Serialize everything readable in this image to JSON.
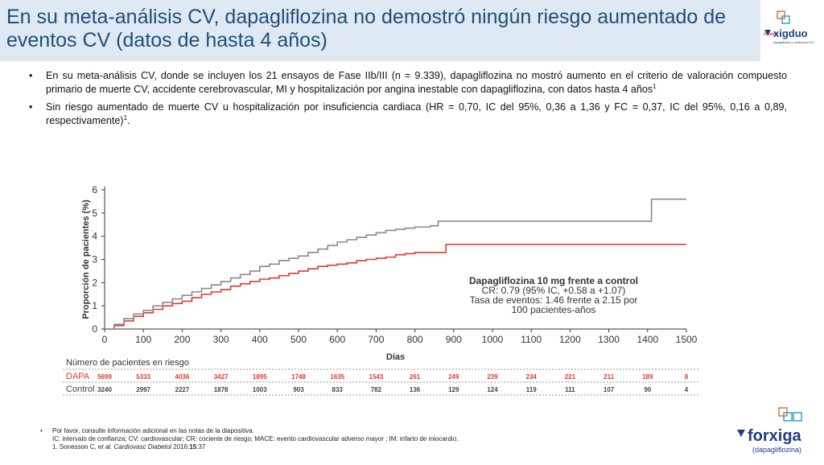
{
  "header": {
    "title": "En su meta-análisis CV, dapagliflozina no demostró ningún riesgo aumentado de eventos CV (datos de hasta 4 años)"
  },
  "brand_top": {
    "name": "xigduo",
    "tag": "nuevo",
    "sub": "dapagliflozina y metformina HCl",
    "color": "#1f3c88"
  },
  "bullets": [
    {
      "text": "En su meta-análisis CV, donde se incluyen los 21 ensayos de Fase IIb/III (n = 9.339), dapagliflozina no mostró aumento en el criterio de valoración compuesto primario de muerte CV, accidente cerebrovascular, MI y hospitalización por angina inestable con dapagliflozina, con datos hasta 4 años",
      "sup": "1"
    },
    {
      "text": "Sin riesgo aumentado de muerte CV u hospitalización por insuficiencia cardiaca (HR = 0,70, IC del 95%, 0,36 a 1,36 y FC = 0,37, IC del 95%, 0,16 a 0,89, respectivamente)",
      "sup": "1",
      "tail": "."
    }
  ],
  "chart_data": {
    "type": "line",
    "ylabel": "Proporción de pacientes (%)",
    "xlabel": "Días",
    "xlim": [
      0,
      1500
    ],
    "ylim": [
      0,
      6
    ],
    "x_ticks": [
      "0",
      "100",
      "200",
      "300",
      "400",
      "500",
      "600",
      "700",
      "800",
      "900",
      "1000",
      "1100",
      "1200",
      "1300",
      "1400",
      "1500"
    ],
    "y_ticks": [
      "0",
      "1",
      "2",
      "3",
      "4",
      "5",
      "6"
    ],
    "annotation": {
      "title": "Dapagliflozina 10 mg frente a control",
      "line1": "CR: 0.79 (95% IC, +0.58 a +1.07)",
      "line2": "Tasa de eventos: 1.46 frente a 2.15 por",
      "line3": "100 pacientes-años"
    },
    "series": [
      {
        "name": "DAPA",
        "color": "#e03a2f",
        "x": [
          0,
          25,
          50,
          75,
          100,
          125,
          150,
          175,
          200,
          225,
          250,
          275,
          300,
          325,
          350,
          375,
          400,
          425,
          450,
          475,
          500,
          525,
          550,
          575,
          600,
          625,
          650,
          675,
          700,
          725,
          750,
          775,
          800,
          850,
          880,
          1000,
          1200,
          1400,
          1500
        ],
        "y": [
          0,
          0.15,
          0.35,
          0.55,
          0.7,
          0.85,
          1.0,
          1.1,
          1.2,
          1.35,
          1.5,
          1.6,
          1.7,
          1.85,
          1.95,
          2.05,
          2.15,
          2.2,
          2.3,
          2.4,
          2.5,
          2.6,
          2.7,
          2.75,
          2.8,
          2.85,
          2.95,
          3.0,
          3.05,
          3.1,
          3.2,
          3.25,
          3.3,
          3.3,
          3.65,
          3.65,
          3.65,
          3.65,
          3.65
        ]
      },
      {
        "name": "Control",
        "color": "#8a8a8a",
        "x": [
          0,
          25,
          50,
          75,
          100,
          125,
          150,
          175,
          200,
          225,
          250,
          275,
          300,
          325,
          350,
          375,
          400,
          425,
          450,
          475,
          500,
          525,
          550,
          575,
          600,
          625,
          650,
          675,
          700,
          725,
          750,
          775,
          800,
          840,
          860,
          1000,
          1200,
          1400,
          1410,
          1500
        ],
        "y": [
          0,
          0.2,
          0.45,
          0.65,
          0.8,
          1.0,
          1.15,
          1.3,
          1.45,
          1.6,
          1.75,
          1.9,
          2.05,
          2.2,
          2.35,
          2.5,
          2.7,
          2.8,
          2.95,
          3.05,
          3.15,
          3.3,
          3.45,
          3.6,
          3.75,
          3.85,
          3.95,
          4.05,
          4.15,
          4.25,
          4.3,
          4.35,
          4.4,
          4.45,
          4.65,
          4.65,
          4.65,
          4.65,
          5.6,
          5.6
        ]
      }
    ],
    "risk_table": {
      "title": "Número de pacientes en riesgo",
      "rows": [
        {
          "label": "DAPA",
          "color": "#e03a2f",
          "values": [
            "5699",
            "5333",
            "4036",
            "3427",
            "1895",
            "1748",
            "1635",
            "1543",
            "261",
            "249",
            "239",
            "234",
            "221",
            "211",
            "189",
            "8"
          ]
        },
        {
          "label": "Control",
          "color": "#444444",
          "values": [
            "3240",
            "2997",
            "2227",
            "1878",
            "1003",
            "903",
            "833",
            "782",
            "136",
            "129",
            "124",
            "119",
            "111",
            "107",
            "90",
            "4"
          ]
        }
      ]
    }
  },
  "footnote": {
    "line1": "Por favor, consulte información adicional en las notas de la diapositiva.",
    "line2": "IC: intervalo de confianza; CV: cardiovascular; CR: cociente de riesgo; MACE: evento cardiovascular adverso mayor ; IM: infarto de miocardio.",
    "ref_prefix": "1. Sonesson C, ",
    "ref_etal": "et al. Cardiovasc Diabetol",
    "ref_year": " 2016;",
    "ref_vol": "15",
    "ref_pages": ":37"
  },
  "brand_bottom": {
    "name": "forxiga",
    "sub": "(dapagliflozina)",
    "color": "#1f3c88"
  }
}
